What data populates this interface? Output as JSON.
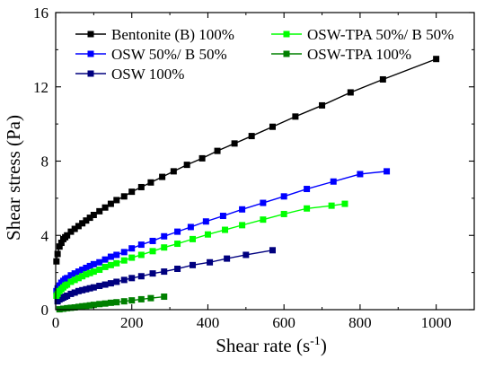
{
  "chart_data": {
    "type": "line",
    "xlabel": "Shear rate (s",
    "xlabel_sup": "-1",
    "xlabel_close": ")",
    "ylabel": "Shear stress (Pa)",
    "xlim": [
      0,
      1100
    ],
    "ylim": [
      0,
      16
    ],
    "xticks": [
      0,
      200,
      400,
      600,
      800,
      1000
    ],
    "yticks": [
      0,
      4,
      8,
      12,
      16
    ],
    "grid": false,
    "legend_position": "top",
    "series": [
      {
        "name": "Bentonite (B) 100%",
        "color": "#000000",
        "marker": "square",
        "x": [
          2,
          5,
          10,
          15,
          20,
          25,
          30,
          40,
          50,
          60,
          70,
          80,
          90,
          100,
          115,
          130,
          145,
          160,
          180,
          200,
          225,
          250,
          280,
          310,
          345,
          385,
          425,
          470,
          515,
          570,
          630,
          700,
          775,
          860,
          1000
        ],
        "y": [
          2.6,
          3.0,
          3.4,
          3.6,
          3.8,
          3.9,
          4.0,
          4.2,
          4.35,
          4.5,
          4.65,
          4.8,
          4.95,
          5.1,
          5.3,
          5.5,
          5.7,
          5.9,
          6.1,
          6.35,
          6.6,
          6.85,
          7.15,
          7.45,
          7.8,
          8.15,
          8.55,
          8.95,
          9.35,
          9.85,
          10.4,
          11.0,
          11.7,
          12.4,
          13.5
        ]
      },
      {
        "name": "OSW 50%/ B 50%",
        "color": "#0000ff",
        "marker": "square",
        "x": [
          2,
          5,
          10,
          15,
          20,
          25,
          30,
          40,
          50,
          60,
          70,
          80,
          90,
          100,
          115,
          130,
          145,
          160,
          180,
          200,
          225,
          255,
          285,
          320,
          355,
          395,
          440,
          490,
          545,
          600,
          660,
          730,
          800,
          870
        ],
        "y": [
          1.0,
          1.15,
          1.3,
          1.45,
          1.55,
          1.65,
          1.7,
          1.85,
          1.95,
          2.05,
          2.15,
          2.25,
          2.35,
          2.45,
          2.55,
          2.7,
          2.85,
          2.95,
          3.1,
          3.3,
          3.5,
          3.7,
          3.95,
          4.2,
          4.45,
          4.75,
          5.05,
          5.4,
          5.75,
          6.1,
          6.5,
          6.9,
          7.3,
          7.45
        ]
      },
      {
        "name": "OSW 100%",
        "color": "#00007f",
        "marker": "square",
        "x": [
          5,
          10,
          15,
          20,
          25,
          30,
          40,
          50,
          60,
          70,
          80,
          90,
          100,
          115,
          130,
          145,
          160,
          180,
          200,
          225,
          255,
          285,
          320,
          360,
          405,
          450,
          500,
          570
        ],
        "y": [
          0.45,
          0.55,
          0.6,
          0.65,
          0.7,
          0.75,
          0.85,
          0.92,
          1.0,
          1.05,
          1.1,
          1.15,
          1.2,
          1.28,
          1.35,
          1.42,
          1.5,
          1.6,
          1.7,
          1.8,
          1.95,
          2.05,
          2.2,
          2.4,
          2.55,
          2.75,
          2.95,
          3.2
        ]
      },
      {
        "name": "OSW-TPA 50%/ B 50%",
        "color": "#00ff00",
        "marker": "square",
        "x": [
          2,
          5,
          10,
          15,
          20,
          25,
          30,
          40,
          50,
          60,
          70,
          80,
          90,
          100,
          115,
          130,
          145,
          160,
          180,
          200,
          225,
          255,
          285,
          320,
          360,
          400,
          445,
          490,
          545,
          600,
          660,
          725,
          760
        ],
        "y": [
          0.75,
          0.85,
          1.0,
          1.1,
          1.2,
          1.3,
          1.35,
          1.5,
          1.6,
          1.7,
          1.8,
          1.9,
          1.97,
          2.05,
          2.15,
          2.3,
          2.4,
          2.5,
          2.65,
          2.8,
          2.95,
          3.15,
          3.35,
          3.55,
          3.8,
          4.05,
          4.3,
          4.55,
          4.85,
          5.15,
          5.45,
          5.6,
          5.7
        ]
      },
      {
        "name": "OSW-TPA 100%",
        "color": "#008000",
        "marker": "square",
        "x": [
          10,
          20,
          30,
          40,
          50,
          60,
          70,
          80,
          90,
          100,
          115,
          130,
          145,
          160,
          180,
          200,
          225,
          250,
          285
        ],
        "y": [
          0.02,
          0.05,
          0.08,
          0.1,
          0.12,
          0.15,
          0.18,
          0.2,
          0.23,
          0.26,
          0.3,
          0.33,
          0.37,
          0.4,
          0.45,
          0.5,
          0.56,
          0.62,
          0.7
        ]
      }
    ]
  }
}
